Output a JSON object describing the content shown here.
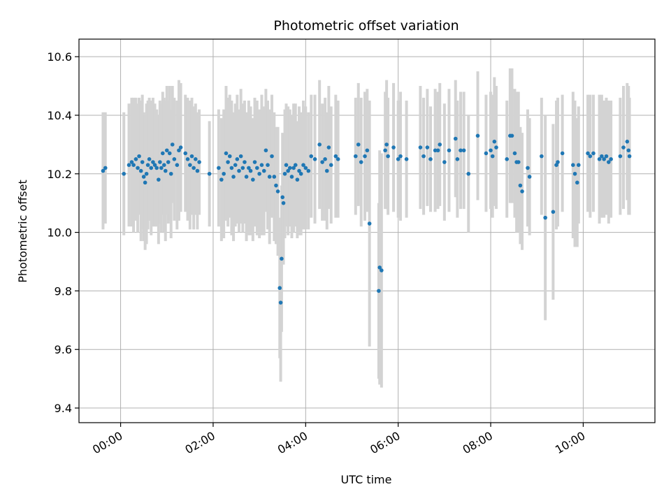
{
  "chart_data": {
    "type": "scatter",
    "title": "Photometric offset variation",
    "xlabel": "UTC time",
    "ylabel": "Photometric offset",
    "x_unit": "UTC hours",
    "xlim": [
      -0.9,
      11.55
    ],
    "ylim": [
      9.35,
      10.66
    ],
    "xticks": [
      {
        "value": 0,
        "label": "00:00"
      },
      {
        "value": 2,
        "label": "02:00"
      },
      {
        "value": 4,
        "label": "04:00"
      },
      {
        "value": 6,
        "label": "06:00"
      },
      {
        "value": 8,
        "label": "08:00"
      },
      {
        "value": 10,
        "label": "10:00"
      }
    ],
    "yticks": [
      {
        "value": 9.4,
        "label": "9.4"
      },
      {
        "value": 9.6,
        "label": "9.6"
      },
      {
        "value": 9.8,
        "label": "9.8"
      },
      {
        "value": 10.0,
        "label": "10.0"
      },
      {
        "value": 10.2,
        "label": "10.2"
      },
      {
        "value": 10.4,
        "label": "10.4"
      },
      {
        "value": 10.6,
        "label": "10.6"
      }
    ],
    "grid": true,
    "point_color": "#1f77b4",
    "errorbar_color": "#d3d3d3",
    "points": [
      [
        -0.38,
        10.21,
        0.2
      ],
      [
        -0.33,
        10.22,
        0.19
      ],
      [
        0.07,
        10.2,
        0.21
      ],
      [
        0.18,
        10.23,
        0.21
      ],
      [
        0.24,
        10.24,
        0.22
      ],
      [
        0.28,
        10.23,
        0.23
      ],
      [
        0.33,
        10.25,
        0.21
      ],
      [
        0.37,
        10.22,
        0.22
      ],
      [
        0.4,
        10.26,
        0.2
      ],
      [
        0.44,
        10.21,
        0.24
      ],
      [
        0.47,
        10.24,
        0.23
      ],
      [
        0.5,
        10.19,
        0.22
      ],
      [
        0.53,
        10.17,
        0.23
      ],
      [
        0.56,
        10.2,
        0.24
      ],
      [
        0.59,
        10.23,
        0.22
      ],
      [
        0.62,
        10.25,
        0.21
      ],
      [
        0.66,
        10.22,
        0.23
      ],
      [
        0.7,
        10.24,
        0.22
      ],
      [
        0.74,
        10.23,
        0.21
      ],
      [
        0.78,
        10.22,
        0.2
      ],
      [
        0.82,
        10.18,
        0.22
      ],
      [
        0.85,
        10.24,
        0.21
      ],
      [
        0.88,
        10.22,
        0.22
      ],
      [
        0.91,
        10.27,
        0.21
      ],
      [
        0.94,
        10.23,
        0.23
      ],
      [
        0.97,
        10.21,
        0.24
      ],
      [
        1.0,
        10.28,
        0.22
      ],
      [
        1.03,
        10.24,
        0.21
      ],
      [
        1.06,
        10.27,
        0.23
      ],
      [
        1.09,
        10.2,
        0.22
      ],
      [
        1.12,
        10.3,
        0.2
      ],
      [
        1.16,
        10.25,
        0.21
      ],
      [
        1.22,
        10.23,
        0.22
      ],
      [
        1.26,
        10.28,
        0.24
      ],
      [
        1.3,
        10.29,
        0.22
      ],
      [
        1.4,
        10.27,
        0.2
      ],
      [
        1.45,
        10.25,
        0.21
      ],
      [
        1.5,
        10.23,
        0.22
      ],
      [
        1.54,
        10.26,
        0.2
      ],
      [
        1.58,
        10.22,
        0.21
      ],
      [
        1.62,
        10.25,
        0.19
      ],
      [
        1.66,
        10.21,
        0.2
      ],
      [
        1.7,
        10.24,
        0.18
      ],
      [
        1.92,
        10.2,
        0.18
      ],
      [
        2.12,
        10.22,
        0.2
      ],
      [
        2.18,
        10.18,
        0.21
      ],
      [
        2.23,
        10.2,
        0.22
      ],
      [
        2.28,
        10.27,
        0.23
      ],
      [
        2.32,
        10.24,
        0.22
      ],
      [
        2.36,
        10.26,
        0.21
      ],
      [
        2.4,
        10.22,
        0.23
      ],
      [
        2.44,
        10.19,
        0.22
      ],
      [
        2.48,
        10.23,
        0.21
      ],
      [
        2.52,
        10.25,
        0.22
      ],
      [
        2.56,
        10.21,
        0.21
      ],
      [
        2.6,
        10.26,
        0.23
      ],
      [
        2.64,
        10.22,
        0.22
      ],
      [
        2.68,
        10.24,
        0.21
      ],
      [
        2.72,
        10.19,
        0.22
      ],
      [
        2.77,
        10.22,
        0.23
      ],
      [
        2.81,
        10.21,
        0.22
      ],
      [
        2.86,
        10.18,
        0.21
      ],
      [
        2.9,
        10.24,
        0.22
      ],
      [
        2.95,
        10.22,
        0.23
      ],
      [
        3.0,
        10.2,
        0.22
      ],
      [
        3.05,
        10.23,
        0.24
      ],
      [
        3.1,
        10.21,
        0.22
      ],
      [
        3.14,
        10.28,
        0.21
      ],
      [
        3.18,
        10.23,
        0.22
      ],
      [
        3.22,
        10.19,
        0.23
      ],
      [
        3.27,
        10.26,
        0.21
      ],
      [
        3.32,
        10.19,
        0.22
      ],
      [
        3.36,
        10.16,
        0.2
      ],
      [
        3.4,
        10.14,
        0.22
      ],
      [
        3.44,
        9.81,
        0.24
      ],
      [
        3.46,
        9.76,
        0.27
      ],
      [
        3.48,
        9.91,
        0.25
      ],
      [
        3.5,
        10.12,
        0.22
      ],
      [
        3.52,
        10.1,
        0.21
      ],
      [
        3.55,
        10.2,
        0.22
      ],
      [
        3.58,
        10.23,
        0.21
      ],
      [
        3.62,
        10.21,
        0.22
      ],
      [
        3.66,
        10.22,
        0.2
      ],
      [
        3.7,
        10.19,
        0.21
      ],
      [
        3.74,
        10.22,
        0.22
      ],
      [
        3.78,
        10.23,
        0.21
      ],
      [
        3.82,
        10.18,
        0.2
      ],
      [
        3.86,
        10.21,
        0.22
      ],
      [
        3.9,
        10.2,
        0.21
      ],
      [
        3.95,
        10.23,
        0.22
      ],
      [
        4.0,
        10.22,
        0.21
      ],
      [
        4.06,
        10.21,
        0.2
      ],
      [
        4.12,
        10.26,
        0.21
      ],
      [
        4.2,
        10.25,
        0.22
      ],
      [
        4.3,
        10.3,
        0.22
      ],
      [
        4.36,
        10.24,
        0.2
      ],
      [
        4.42,
        10.25,
        0.21
      ],
      [
        4.46,
        10.21,
        0.2
      ],
      [
        4.5,
        10.29,
        0.21
      ],
      [
        4.55,
        10.23,
        0.2
      ],
      [
        4.65,
        10.26,
        0.21
      ],
      [
        4.7,
        10.25,
        0.2
      ],
      [
        5.08,
        10.26,
        0.2
      ],
      [
        5.14,
        10.3,
        0.21
      ],
      [
        5.2,
        10.24,
        0.22
      ],
      [
        5.28,
        10.26,
        0.22
      ],
      [
        5.33,
        10.28,
        0.21
      ],
      [
        5.38,
        10.03,
        0.42
      ],
      [
        5.58,
        9.8,
        0.3
      ],
      [
        5.6,
        9.88,
        0.4
      ],
      [
        5.64,
        9.87,
        0.4
      ],
      [
        5.72,
        10.28,
        0.2
      ],
      [
        5.75,
        10.3,
        0.22
      ],
      [
        5.78,
        10.26,
        0.2
      ],
      [
        5.9,
        10.29,
        0.22
      ],
      [
        6.0,
        10.25,
        0.2
      ],
      [
        6.05,
        10.26,
        0.22
      ],
      [
        6.18,
        10.25,
        0.2
      ],
      [
        6.48,
        10.29,
        0.21
      ],
      [
        6.55,
        10.26,
        0.2
      ],
      [
        6.63,
        10.29,
        0.2
      ],
      [
        6.7,
        10.25,
        0.18
      ],
      [
        6.8,
        10.28,
        0.21
      ],
      [
        6.86,
        10.28,
        0.2
      ],
      [
        6.9,
        10.3,
        0.21
      ],
      [
        7.0,
        10.24,
        0.2
      ],
      [
        7.1,
        10.28,
        0.21
      ],
      [
        7.24,
        10.32,
        0.2
      ],
      [
        7.28,
        10.25,
        0.2
      ],
      [
        7.35,
        10.28,
        0.2
      ],
      [
        7.42,
        10.28,
        0.2
      ],
      [
        7.52,
        10.2,
        0.2
      ],
      [
        7.72,
        10.33,
        0.22
      ],
      [
        7.9,
        10.27,
        0.2
      ],
      [
        8.0,
        10.28,
        0.2
      ],
      [
        8.04,
        10.26,
        0.21
      ],
      [
        8.08,
        10.31,
        0.22
      ],
      [
        8.12,
        10.29,
        0.21
      ],
      [
        8.35,
        10.25,
        0.2
      ],
      [
        8.42,
        10.33,
        0.23
      ],
      [
        8.46,
        10.33,
        0.23
      ],
      [
        8.52,
        10.27,
        0.22
      ],
      [
        8.56,
        10.24,
        0.24
      ],
      [
        8.6,
        10.24,
        0.24
      ],
      [
        8.64,
        10.16,
        0.2
      ],
      [
        8.68,
        10.14,
        0.2
      ],
      [
        8.8,
        10.22,
        0.2
      ],
      [
        8.84,
        10.19,
        0.2
      ],
      [
        9.1,
        10.26,
        0.2
      ],
      [
        9.18,
        10.05,
        0.35
      ],
      [
        9.35,
        10.07,
        0.3
      ],
      [
        9.42,
        10.23,
        0.22
      ],
      [
        9.45,
        10.24,
        0.22
      ],
      [
        9.55,
        10.27,
        0.2
      ],
      [
        9.78,
        10.23,
        0.25
      ],
      [
        9.82,
        10.2,
        0.25
      ],
      [
        9.87,
        10.17,
        0.22
      ],
      [
        9.9,
        10.23,
        0.2
      ],
      [
        10.1,
        10.27,
        0.2
      ],
      [
        10.15,
        10.26,
        0.21
      ],
      [
        10.22,
        10.27,
        0.2
      ],
      [
        10.35,
        10.25,
        0.22
      ],
      [
        10.4,
        10.26,
        0.21
      ],
      [
        10.45,
        10.25,
        0.2
      ],
      [
        10.5,
        10.26,
        0.2
      ],
      [
        10.55,
        10.24,
        0.21
      ],
      [
        10.6,
        10.25,
        0.2
      ],
      [
        10.8,
        10.26,
        0.2
      ],
      [
        10.87,
        10.29,
        0.21
      ],
      [
        10.95,
        10.31,
        0.2
      ],
      [
        10.98,
        10.28,
        0.22
      ],
      [
        11.0,
        10.26,
        0.2
      ]
    ]
  }
}
